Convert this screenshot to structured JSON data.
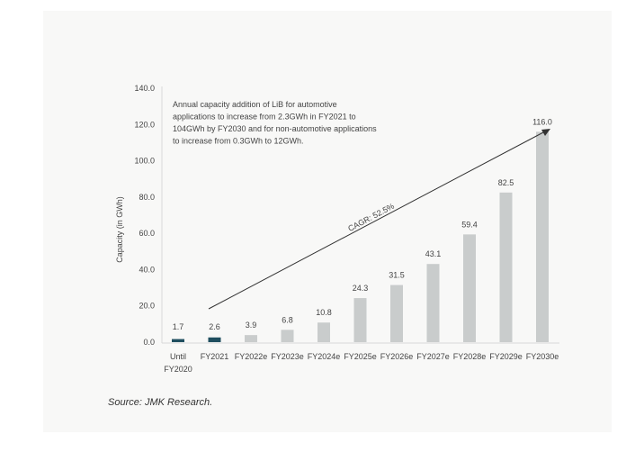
{
  "chart_data": {
    "type": "bar",
    "categories": [
      "Until FY2020",
      "FY2021",
      "FY2022e",
      "FY2023e",
      "FY2024e",
      "FY2025e",
      "FY2026e",
      "FY2027e",
      "FY2028e",
      "FY2029e",
      "FY2030e"
    ],
    "values": [
      1.7,
      2.6,
      3.9,
      6.8,
      10.8,
      24.3,
      31.5,
      43.1,
      59.4,
      82.5,
      116.0
    ],
    "value_labels": [
      "1.7",
      "2.6",
      "3.9",
      "6.8",
      "10.8",
      "24.3",
      "31.5",
      "43.1",
      "59.4",
      "82.5",
      "116.0"
    ],
    "ylabel": "Capacity (in GWh)",
    "xlabel": "",
    "ylim": [
      0,
      140
    ],
    "yticks": [
      "0.0",
      "20.0",
      "40.0",
      "60.0",
      "80.0",
      "100.0",
      "120.0",
      "140.0"
    ],
    "grid": false,
    "annotation_lines": [
      "Annual capacity addition of LiB for automotive",
      "applications to increase from 2.3GWh in FY2021 to",
      "104GWh by FY2030 and for non-automotive applications",
      "to increase from 0.3GWh to 12GWh."
    ],
    "cagr_label": "CAGR: 52.5%",
    "source": "Source: JMK Research.",
    "colors": {
      "actual": "#1f4e5f",
      "forecast": "#c9cccc",
      "axis": "#cfcfcf",
      "arrow": "#333333"
    }
  }
}
